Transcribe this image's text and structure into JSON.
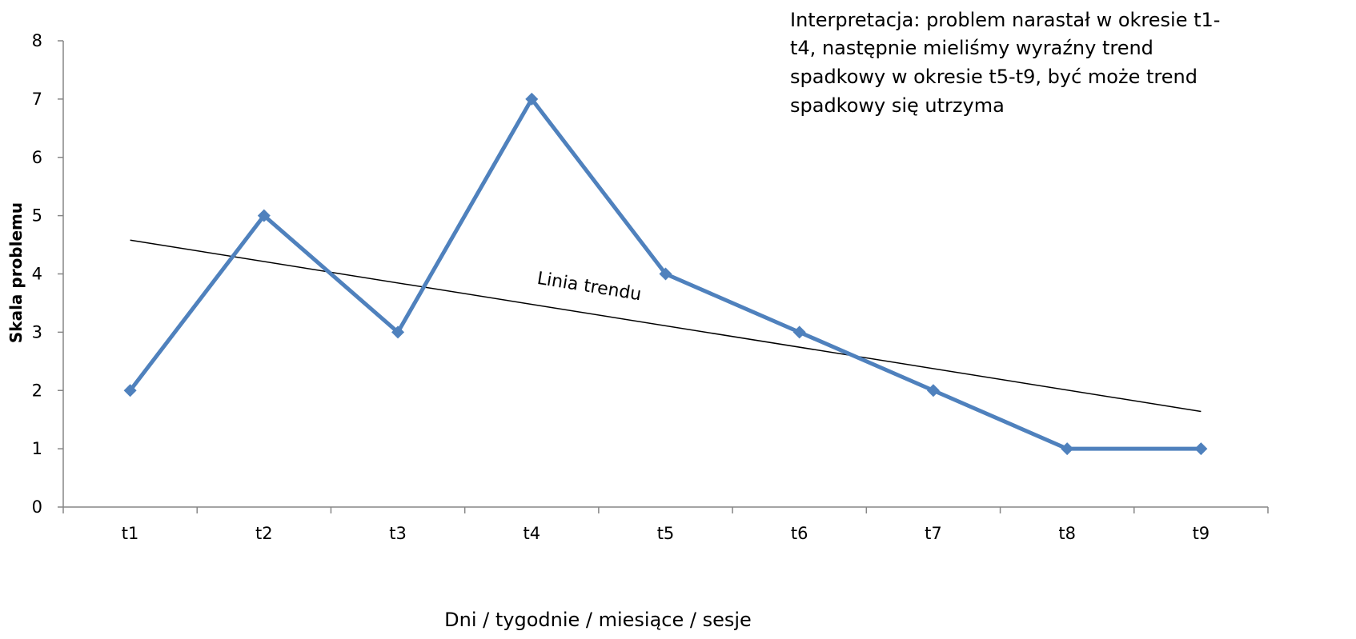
{
  "chart_data": {
    "type": "line",
    "categories": [
      "t1",
      "t2",
      "t3",
      "t4",
      "t5",
      "t6",
      "t7",
      "t8",
      "t9"
    ],
    "series": [
      {
        "values": [
          2,
          5,
          3,
          7,
          4,
          3,
          2,
          1,
          1
        ],
        "color": "#4F81BD",
        "marker": "diamond"
      }
    ],
    "trendline": {
      "label": "Linia trendu",
      "start": 4.58,
      "end": 1.64,
      "color": "#000000"
    },
    "title": "",
    "xlabel": "Dni / tygodnie / miesiące / sesje",
    "ylabel": "Skala problemu",
    "ylim": [
      0,
      8
    ],
    "yticks": [
      "0",
      "1",
      "2",
      "3",
      "4",
      "5",
      "6",
      "7",
      "8"
    ],
    "grid": false,
    "annotation": [
      "Interpretacja: problem narastał w okresie t1-",
      "t4, następnie mieliśmy wyraźny trend",
      "spadkowy w okresie t5-t9, być może trend",
      "spadkowy się utrzyma"
    ]
  }
}
